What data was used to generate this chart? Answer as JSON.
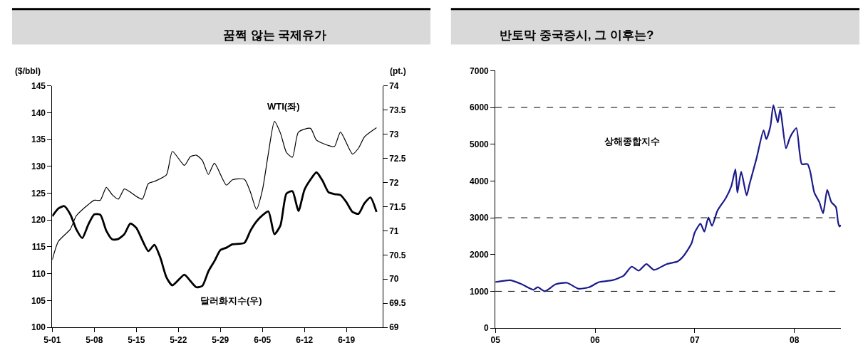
{
  "chart_data": [
    {
      "type": "line",
      "title": "꿈쩍 않는 국제유가",
      "ylabel": "($/bbl)",
      "y2label": "(pt.)",
      "xlim": [
        "--05-01",
        "--06-25"
      ],
      "xticks": [
        {
          "value": "--05-01",
          "label": "5-01"
        },
        {
          "value": "--05-08",
          "label": "5-08"
        },
        {
          "value": "--05-15",
          "label": "5-15"
        },
        {
          "value": "--05-22",
          "label": "5-22"
        },
        {
          "value": "--05-29",
          "label": "5-29"
        },
        {
          "value": "--06-05",
          "label": "6-05"
        },
        {
          "value": "--06-12",
          "label": "6-12"
        },
        {
          "value": "--06-19",
          "label": "6-19"
        }
      ],
      "ylim": [
        100,
        145
      ],
      "yticks": [
        100,
        105,
        110,
        115,
        120,
        125,
        130,
        135,
        140,
        145
      ],
      "y2lim": [
        69,
        74
      ],
      "y2ticks": [
        69,
        69.5,
        70,
        70.5,
        71,
        71.5,
        72,
        72.5,
        73,
        73.5,
        74
      ],
      "legend": false,
      "marker": "none",
      "line_style": "solid",
      "series": [
        {
          "name": "WTI(좌)",
          "color": "#000000",
          "x": [
            "--05-01",
            "--05-02",
            "--05-04",
            "--05-05",
            "--05-07",
            "--05-08",
            "--05-09",
            "--05-10",
            "--05-11",
            "--05-12",
            "--05-13",
            "--05-14",
            "--05-15",
            "--05-16",
            "--05-17",
            "--05-18",
            "--05-20",
            "--05-21",
            "--05-23",
            "--05-24",
            "--05-25",
            "--05-26",
            "--05-27",
            "--05-28",
            "--05-30",
            "--05-31",
            "--06-02",
            "--06-03",
            "--06-04",
            "--06-05",
            "--06-06",
            "--06-07",
            "--06-08",
            "--06-09",
            "--06-10",
            "--06-11",
            "--06-13",
            "--06-14",
            "--06-16",
            "--06-17",
            "--06-18",
            "--06-20",
            "--06-21",
            "--06-22",
            "--06-24"
          ],
          "values": [
            112.6,
            116,
            118.3,
            120.8,
            122.9,
            123.7,
            123.7,
            126.1,
            124.7,
            123.9,
            125.8,
            125.2,
            124.4,
            123.9,
            126.8,
            127.2,
            128.4,
            132.8,
            130.2,
            131.8,
            132.1,
            131.1,
            128.5,
            130.6,
            126.5,
            127.5,
            127.6,
            125.2,
            122,
            125.6,
            132.5,
            138.4,
            136.2,
            132.6,
            131.7,
            136.4,
            137.1,
            134.9,
            133.9,
            133.7,
            136.4,
            132.3,
            133.4,
            135.5,
            137.2
          ]
        },
        {
          "name": "달러화지수(우)",
          "color": "#000000",
          "axis": "y2",
          "x": [
            "--05-01",
            "--05-02",
            "--05-03",
            "--05-04",
            "--05-05",
            "--05-06",
            "--05-07",
            "--05-08",
            "--05-09",
            "--05-10",
            "--05-11",
            "--05-12",
            "--05-13",
            "--05-14",
            "--05-15",
            "--05-17",
            "--05-18",
            "--05-19",
            "--05-20",
            "--05-21",
            "--05-23",
            "--05-24",
            "--05-25",
            "--05-26",
            "--05-27",
            "--05-28",
            "--05-29",
            "--05-30",
            "--05-31",
            "--06-02",
            "--06-03",
            "--06-04",
            "--06-05",
            "--06-06",
            "--06-07",
            "--06-08",
            "--06-09",
            "--06-10",
            "--06-11",
            "--06-12",
            "--06-13",
            "--06-14",
            "--06-15",
            "--06-16",
            "--06-17",
            "--06-18",
            "--06-19",
            "--06-20",
            "--06-21",
            "--06-22",
            "--06-23",
            "--06-24"
          ],
          "values": [
            71.3,
            71.46,
            71.51,
            71.34,
            71.03,
            70.85,
            71.13,
            71.34,
            71.33,
            71,
            70.82,
            70.83,
            70.93,
            71.15,
            71.06,
            70.58,
            70.71,
            70.44,
            70.04,
            69.87,
            70.09,
            69.96,
            69.83,
            69.86,
            70.16,
            70.37,
            70.6,
            70.65,
            70.72,
            70.75,
            71,
            71.19,
            71.32,
            71.4,
            70.93,
            71.11,
            71.77,
            71.82,
            71.41,
            71.85,
            72.06,
            72.21,
            72.04,
            71.8,
            71.76,
            71.74,
            71.59,
            71.39,
            71.35,
            71.57,
            71.69,
            71.39
          ]
        }
      ]
    },
    {
      "type": "line",
      "title": "반토막 중국증시, 그 이후는?",
      "xlim": [
        "2005-01-01",
        "2008-06-20"
      ],
      "xticks": [
        {
          "value": "2005-01-01",
          "label": "05"
        },
        {
          "value": "2006-01-01",
          "label": "06"
        },
        {
          "value": "2007-01-01",
          "label": "07"
        },
        {
          "value": "2008-01-01",
          "label": "08"
        }
      ],
      "ylim": [
        0,
        7000
      ],
      "yticks": [
        0,
        1000,
        2000,
        3000,
        4000,
        5000,
        6000,
        7000
      ],
      "legend": false,
      "marker": "none",
      "line_style": "solid",
      "ref_lines": [
        {
          "axis": "y",
          "value": 1000,
          "color": "#000000",
          "line_style": "dashed"
        },
        {
          "axis": "y",
          "value": 3000,
          "color": "#000000",
          "line_style": "dashed"
        },
        {
          "axis": "y",
          "value": 6000,
          "color": "#000000",
          "line_style": "dashed"
        }
      ],
      "series": [
        {
          "name": "상해종합지수",
          "color": "#1a1a8c",
          "x": [
            "2005-01-01",
            "2005-02-25",
            "2005-04-05",
            "2005-05-20",
            "2005-06-05",
            "2005-07-01",
            "2005-08-10",
            "2005-09-20",
            "2005-11-01",
            "2005-12-10",
            "2006-01-15",
            "2006-03-05",
            "2006-04-15",
            "2006-05-15",
            "2006-06-10",
            "2006-07-08",
            "2006-08-05",
            "2006-09-20",
            "2006-10-30",
            "2006-11-20",
            "2006-12-20",
            "2007-01-01",
            "2007-01-22",
            "2007-02-05",
            "2007-02-20",
            "2007-03-05",
            "2007-03-25",
            "2007-04-25",
            "2007-05-15",
            "2007-05-30",
            "2007-06-06",
            "2007-06-20",
            "2007-07-10",
            "2007-07-20",
            "2007-08-15",
            "2007-09-10",
            "2007-09-20",
            "2007-10-05",
            "2007-10-16",
            "2007-11-01",
            "2007-11-10",
            "2007-12-01",
            "2007-12-15",
            "2007-12-25",
            "2008-01-08",
            "2008-01-20",
            "2008-01-28",
            "2008-02-18",
            "2008-02-28",
            "2008-03-14",
            "2008-04-01",
            "2008-04-15",
            "2008-04-30",
            "2008-05-15",
            "2008-06-01",
            "2008-06-09",
            "2008-06-14",
            "2008-06-19"
          ],
          "values": [
            1250,
            1300,
            1200,
            1040,
            1110,
            1000,
            1190,
            1230,
            1070,
            1110,
            1250,
            1300,
            1420,
            1670,
            1560,
            1740,
            1580,
            1740,
            1810,
            1950,
            2300,
            2600,
            2840,
            2620,
            3010,
            2780,
            3190,
            3540,
            3860,
            4320,
            3680,
            4250,
            3610,
            3900,
            4610,
            5380,
            5140,
            5490,
            6060,
            5590,
            5950,
            4890,
            5170,
            5310,
            5440,
            4780,
            4460,
            4460,
            4250,
            3680,
            3430,
            3120,
            3760,
            3430,
            3290,
            2870,
            2760,
            2800
          ]
        }
      ]
    }
  ]
}
